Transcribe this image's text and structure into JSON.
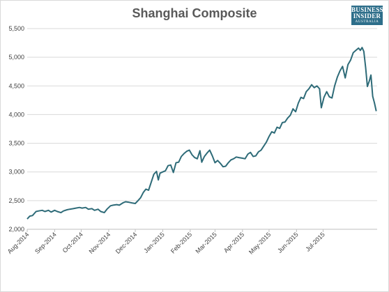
{
  "title": "Shanghai Composite",
  "logo": {
    "line1": "BUSINESS",
    "line2": "INSIDER",
    "line3": "AUSTRALIA"
  },
  "colors": {
    "line": "#2e6b78",
    "grid": "#d9d9d9",
    "axis": "#bfbfbf",
    "logo_bg": "#2d6e8a"
  },
  "chart_data": {
    "type": "line",
    "title": "Shanghai Composite",
    "xlabel": "",
    "ylabel": "",
    "ylim": [
      2000,
      5500
    ],
    "xlim": [
      "2014-08-01",
      "2015-08-31"
    ],
    "y_ticks": [
      2000,
      2500,
      3000,
      3500,
      4000,
      4500,
      5000,
      5500
    ],
    "y_tick_labels": [
      "2,000",
      "2,500",
      "3,000",
      "3,500",
      "4,000",
      "4,500",
      "5,000",
      "5,500"
    ],
    "x_ticks": [
      {
        "label": "Aug-2014",
        "date": "2014-08-01"
      },
      {
        "label": "Sep-2014",
        "date": "2014-09-01"
      },
      {
        "label": "Oct-2014",
        "date": "2014-10-01"
      },
      {
        "label": "Nov-2014",
        "date": "2014-11-01"
      },
      {
        "label": "Dec-2014",
        "date": "2014-12-01"
      },
      {
        "label": "Jan-2015",
        "date": "2015-01-01"
      },
      {
        "label": "Feb-2015",
        "date": "2015-02-01"
      },
      {
        "label": "Mar-2015",
        "date": "2015-03-01"
      },
      {
        "label": "Apr-2015",
        "date": "2015-04-01"
      },
      {
        "label": "May-2015",
        "date": "2015-05-01"
      },
      {
        "label": "Jun-2015",
        "date": "2015-06-01"
      },
      {
        "label": "Jul-2015",
        "date": "2015-07-01"
      }
    ],
    "grid": "horizontal",
    "legend": "none",
    "series": [
      {
        "points": [
          [
            "2014-08-01",
            2180
          ],
          [
            "2014-08-04",
            2230
          ],
          [
            "2014-08-07",
            2240
          ],
          [
            "2014-08-11",
            2310
          ],
          [
            "2014-08-14",
            2320
          ],
          [
            "2014-08-18",
            2330
          ],
          [
            "2014-08-21",
            2310
          ],
          [
            "2014-08-25",
            2330
          ],
          [
            "2014-08-28",
            2300
          ],
          [
            "2014-09-01",
            2330
          ],
          [
            "2014-09-04",
            2310
          ],
          [
            "2014-09-08",
            2290
          ],
          [
            "2014-09-11",
            2320
          ],
          [
            "2014-09-15",
            2340
          ],
          [
            "2014-09-18",
            2350
          ],
          [
            "2014-09-22",
            2360
          ],
          [
            "2014-09-25",
            2370
          ],
          [
            "2014-09-29",
            2380
          ],
          [
            "2014-10-02",
            2370
          ],
          [
            "2014-10-06",
            2380
          ],
          [
            "2014-10-09",
            2350
          ],
          [
            "2014-10-13",
            2360
          ],
          [
            "2014-10-16",
            2330
          ],
          [
            "2014-10-20",
            2350
          ],
          [
            "2014-10-23",
            2310
          ],
          [
            "2014-10-27",
            2290
          ],
          [
            "2014-10-30",
            2350
          ],
          [
            "2014-11-03",
            2410
          ],
          [
            "2014-11-06",
            2420
          ],
          [
            "2014-11-10",
            2430
          ],
          [
            "2014-11-13",
            2420
          ],
          [
            "2014-11-17",
            2460
          ],
          [
            "2014-11-20",
            2480
          ],
          [
            "2014-11-24",
            2470
          ],
          [
            "2014-11-27",
            2460
          ],
          [
            "2014-12-01",
            2450
          ],
          [
            "2014-12-04",
            2500
          ],
          [
            "2014-12-07",
            2550
          ],
          [
            "2014-12-10",
            2640
          ],
          [
            "2014-12-13",
            2700
          ],
          [
            "2014-12-16",
            2680
          ],
          [
            "2014-12-19",
            2820
          ],
          [
            "2014-12-22",
            2960
          ],
          [
            "2014-12-25",
            3010
          ],
          [
            "2014-12-27",
            2860
          ],
          [
            "2014-12-29",
            2980
          ],
          [
            "2015-01-01",
            3000
          ],
          [
            "2015-01-04",
            3020
          ],
          [
            "2015-01-07",
            3110
          ],
          [
            "2015-01-10",
            3120
          ],
          [
            "2015-01-13",
            2990
          ],
          [
            "2015-01-16",
            3160
          ],
          [
            "2015-01-19",
            3170
          ],
          [
            "2015-01-22",
            3270
          ],
          [
            "2015-01-25",
            3320
          ],
          [
            "2015-01-28",
            3360
          ],
          [
            "2015-01-31",
            3380
          ],
          [
            "2015-02-03",
            3300
          ],
          [
            "2015-02-06",
            3250
          ],
          [
            "2015-02-09",
            3230
          ],
          [
            "2015-02-12",
            3370
          ],
          [
            "2015-02-14",
            3170
          ],
          [
            "2015-02-17",
            3270
          ],
          [
            "2015-02-20",
            3330
          ],
          [
            "2015-02-23",
            3380
          ],
          [
            "2015-02-26",
            3280
          ],
          [
            "2015-03-01",
            3160
          ],
          [
            "2015-03-04",
            3200
          ],
          [
            "2015-03-07",
            3150
          ],
          [
            "2015-03-10",
            3090
          ],
          [
            "2015-03-13",
            3100
          ],
          [
            "2015-03-16",
            3160
          ],
          [
            "2015-03-19",
            3210
          ],
          [
            "2015-03-22",
            3230
          ],
          [
            "2015-03-25",
            3260
          ],
          [
            "2015-03-28",
            3250
          ],
          [
            "2015-04-01",
            3240
          ],
          [
            "2015-04-04",
            3230
          ],
          [
            "2015-04-07",
            3310
          ],
          [
            "2015-04-10",
            3340
          ],
          [
            "2015-04-13",
            3270
          ],
          [
            "2015-04-16",
            3280
          ],
          [
            "2015-04-19",
            3350
          ],
          [
            "2015-04-22",
            3380
          ],
          [
            "2015-04-25",
            3450
          ],
          [
            "2015-04-28",
            3520
          ],
          [
            "2015-05-01",
            3620
          ],
          [
            "2015-05-04",
            3700
          ],
          [
            "2015-05-07",
            3680
          ],
          [
            "2015-05-10",
            3780
          ],
          [
            "2015-05-13",
            3760
          ],
          [
            "2015-05-16",
            3860
          ],
          [
            "2015-05-19",
            3870
          ],
          [
            "2015-05-22",
            3940
          ],
          [
            "2015-05-25",
            3990
          ],
          [
            "2015-05-28",
            4100
          ],
          [
            "2015-05-31",
            4050
          ],
          [
            "2015-06-03",
            4200
          ],
          [
            "2015-06-06",
            4300
          ],
          [
            "2015-06-09",
            4280
          ],
          [
            "2015-06-12",
            4400
          ],
          [
            "2015-06-15",
            4450
          ],
          [
            "2015-06-18",
            4520
          ],
          [
            "2015-06-21",
            4470
          ],
          [
            "2015-06-24",
            4500
          ],
          [
            "2015-06-27",
            4450
          ],
          [
            "2015-06-29",
            4120
          ],
          [
            "2015-07-02",
            4300
          ],
          [
            "2015-07-05",
            4400
          ],
          [
            "2015-07-08",
            4310
          ],
          [
            "2015-07-11",
            4290
          ],
          [
            "2015-07-14",
            4500
          ],
          [
            "2015-07-17",
            4650
          ],
          [
            "2015-07-20",
            4760
          ],
          [
            "2015-07-23",
            4840
          ],
          [
            "2015-07-26",
            4640
          ],
          [
            "2015-07-29",
            4870
          ],
          [
            "2015-08-01",
            4950
          ],
          [
            "2015-08-04",
            5080
          ],
          [
            "2015-08-07",
            5120
          ],
          [
            "2015-08-10",
            5160
          ],
          [
            "2015-08-12",
            5120
          ],
          [
            "2015-08-14",
            5170
          ],
          [
            "2015-08-16",
            5100
          ],
          [
            "2015-08-18",
            4820
          ],
          [
            "2015-08-20",
            4490
          ],
          [
            "2015-08-22",
            4580
          ],
          [
            "2015-08-24",
            4690
          ],
          [
            "2015-08-26",
            4320
          ],
          [
            "2015-08-28",
            4200
          ],
          [
            "2015-08-30",
            4060
          ]
        ]
      }
    ]
  }
}
